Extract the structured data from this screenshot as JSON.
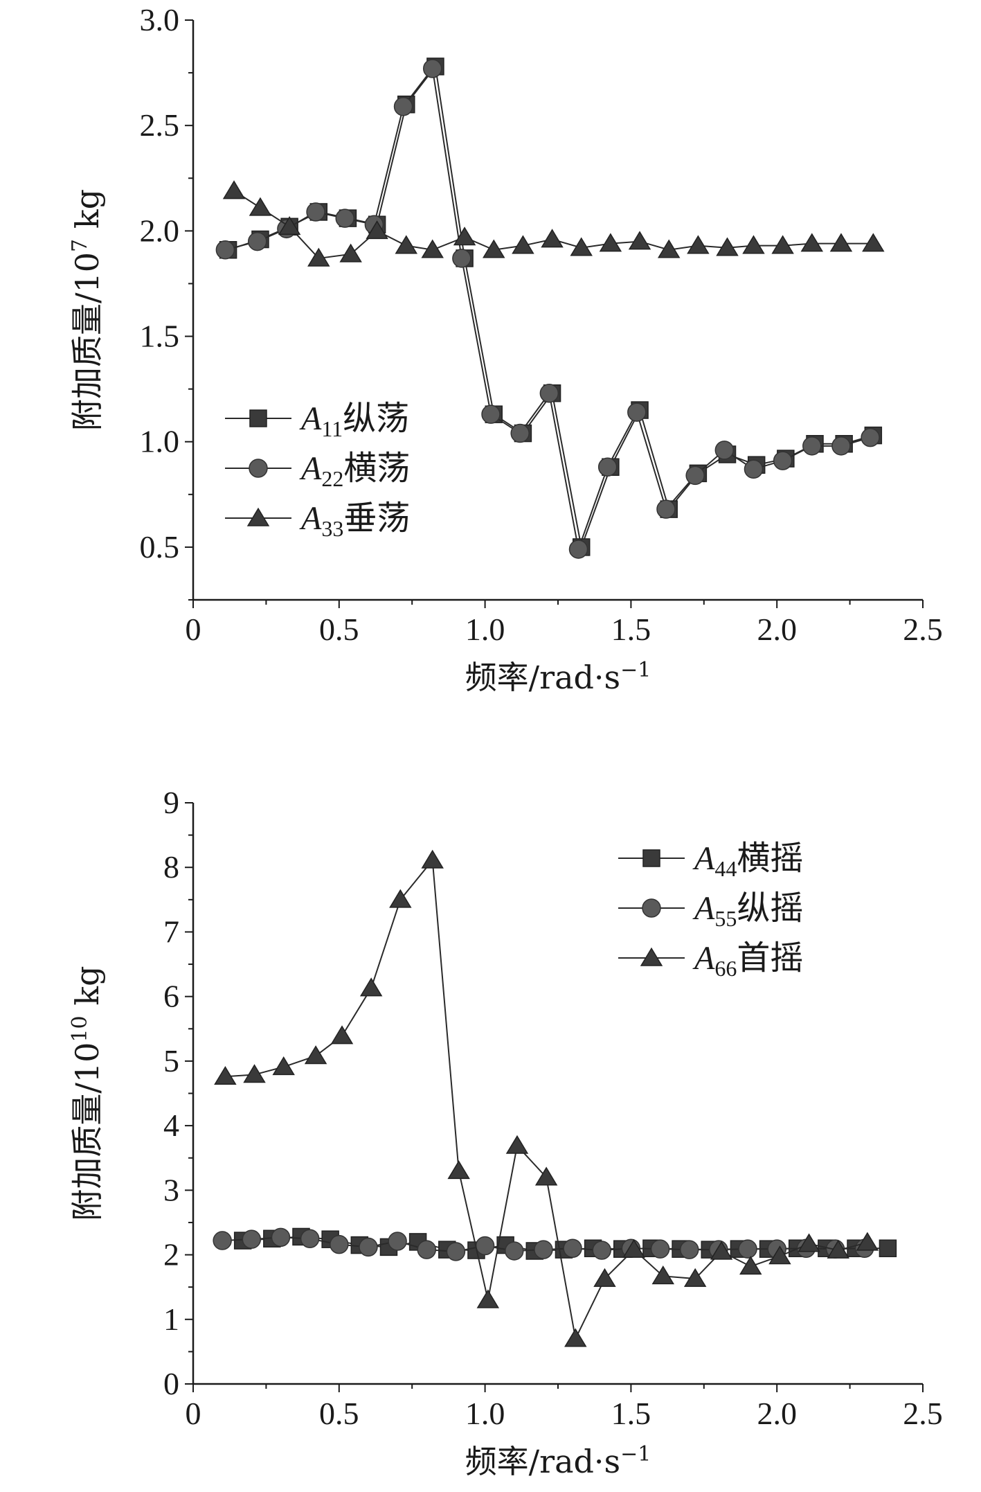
{
  "chart_data": [
    {
      "type": "line",
      "title": "",
      "xlabel": "频率/rad·s",
      "xlabel_sup": "−1",
      "ylabel": "附加质量/10",
      "ylabel_sup": "7",
      "ylabel_unit": " kg",
      "xlim": [
        0,
        2.5
      ],
      "ylim": [
        0.25,
        3.0
      ],
      "xticks": [
        "0",
        "0.5",
        "1.0",
        "1.5",
        "2.0",
        "2.5"
      ],
      "xtick_values": [
        0,
        0.5,
        1.0,
        1.5,
        2.0,
        2.5
      ],
      "yticks": [
        "0.5",
        "1.0",
        "1.5",
        "2.0",
        "2.5",
        "3.0"
      ],
      "ytick_values": [
        0.5,
        1.0,
        1.5,
        2.0,
        2.5,
        3.0
      ],
      "legend_position": "middle-left",
      "series": [
        {
          "name_sym": "A",
          "name_sub": "11",
          "name_text": "纵荡",
          "marker": "square",
          "x": [
            0.12,
            0.23,
            0.33,
            0.43,
            0.53,
            0.63,
            0.73,
            0.83,
            0.93,
            1.03,
            1.13,
            1.23,
            1.33,
            1.43,
            1.53,
            1.63,
            1.73,
            1.83,
            1.93,
            2.03,
            2.13,
            2.23,
            2.33
          ],
          "y": [
            1.91,
            1.96,
            2.02,
            2.09,
            2.06,
            2.03,
            2.6,
            2.78,
            1.87,
            1.13,
            1.04,
            1.23,
            0.5,
            0.88,
            1.15,
            0.68,
            0.85,
            0.94,
            0.89,
            0.92,
            0.99,
            0.99,
            1.03
          ]
        },
        {
          "name_sym": "A",
          "name_sub": "22",
          "name_text": "横荡",
          "marker": "circle",
          "x": [
            0.11,
            0.22,
            0.32,
            0.42,
            0.52,
            0.62,
            0.72,
            0.82,
            0.92,
            1.02,
            1.12,
            1.22,
            1.32,
            1.42,
            1.52,
            1.62,
            1.72,
            1.82,
            1.92,
            2.02,
            2.12,
            2.22,
            2.32
          ],
          "y": [
            1.91,
            1.95,
            2.01,
            2.09,
            2.06,
            2.03,
            2.59,
            2.77,
            1.87,
            1.13,
            1.04,
            1.23,
            0.49,
            0.88,
            1.14,
            0.68,
            0.84,
            0.96,
            0.87,
            0.91,
            0.98,
            0.98,
            1.02
          ]
        },
        {
          "name_sym": "A",
          "name_sub": "33",
          "name_text": "垂荡",
          "marker": "triangle",
          "x": [
            0.14,
            0.23,
            0.33,
            0.43,
            0.54,
            0.63,
            0.73,
            0.82,
            0.93,
            1.03,
            1.13,
            1.23,
            1.33,
            1.43,
            1.53,
            1.63,
            1.73,
            1.83,
            1.92,
            2.02,
            2.12,
            2.22,
            2.33
          ],
          "y": [
            2.19,
            2.11,
            2.02,
            1.87,
            1.89,
            2.0,
            1.93,
            1.91,
            1.97,
            1.91,
            1.93,
            1.96,
            1.92,
            1.94,
            1.95,
            1.91,
            1.93,
            1.92,
            1.93,
            1.93,
            1.94,
            1.94,
            1.94
          ]
        }
      ]
    },
    {
      "type": "line",
      "title": "",
      "xlabel": "频率/rad·s",
      "xlabel_sup": "−1",
      "ylabel": "附加质量/10",
      "ylabel_sup": "10",
      "ylabel_unit": " kg",
      "xlim": [
        0,
        2.5
      ],
      "ylim": [
        0,
        9
      ],
      "xticks": [
        "0",
        "0.5",
        "1.0",
        "1.5",
        "2.0",
        "2.5"
      ],
      "xtick_values": [
        0,
        0.5,
        1.0,
        1.5,
        2.0,
        2.5
      ],
      "yticks": [
        "0",
        "1",
        "2",
        "3",
        "4",
        "5",
        "6",
        "7",
        "8",
        "9"
      ],
      "ytick_values": [
        0,
        1,
        2,
        3,
        4,
        5,
        6,
        7,
        8,
        9
      ],
      "legend_position": "top-right",
      "series": [
        {
          "name_sym": "A",
          "name_sub": "44",
          "name_text": "横摇",
          "marker": "square",
          "x": [
            0.17,
            0.27,
            0.37,
            0.47,
            0.57,
            0.67,
            0.77,
            0.87,
            0.97,
            1.07,
            1.17,
            1.27,
            1.37,
            1.47,
            1.57,
            1.67,
            1.77,
            1.87,
            1.97,
            2.07,
            2.17,
            2.27,
            2.38
          ],
          "y": [
            2.22,
            2.25,
            2.28,
            2.24,
            2.15,
            2.12,
            2.2,
            2.08,
            2.07,
            2.15,
            2.06,
            2.08,
            2.1,
            2.09,
            2.1,
            2.09,
            2.08,
            2.09,
            2.09,
            2.1,
            2.1,
            2.1,
            2.1
          ]
        },
        {
          "name_sym": "A",
          "name_sub": "55",
          "name_text": "纵摇",
          "marker": "circle",
          "x": [
            0.1,
            0.2,
            0.3,
            0.4,
            0.5,
            0.6,
            0.7,
            0.8,
            0.9,
            1.0,
            1.1,
            1.2,
            1.3,
            1.4,
            1.5,
            1.6,
            1.7,
            1.8,
            1.9,
            2.0,
            2.1,
            2.2,
            2.3
          ],
          "y": [
            2.22,
            2.24,
            2.27,
            2.25,
            2.16,
            2.12,
            2.21,
            2.08,
            2.05,
            2.14,
            2.06,
            2.08,
            2.1,
            2.07,
            2.1,
            2.09,
            2.08,
            2.08,
            2.09,
            2.09,
            2.1,
            2.09,
            2.1
          ]
        },
        {
          "name_sym": "A",
          "name_sub": "66",
          "name_text": "首摇",
          "marker": "triangle",
          "x": [
            0.11,
            0.21,
            0.31,
            0.42,
            0.51,
            0.61,
            0.71,
            0.82,
            0.91,
            1.01,
            1.11,
            1.21,
            1.31,
            1.41,
            1.51,
            1.61,
            1.72,
            1.81,
            1.91,
            2.01,
            2.11,
            2.21,
            2.31
          ],
          "y": [
            4.76,
            4.79,
            4.91,
            5.08,
            5.39,
            6.13,
            7.5,
            8.11,
            3.3,
            1.3,
            3.69,
            3.2,
            0.7,
            1.63,
            2.08,
            1.67,
            1.63,
            2.05,
            1.82,
            1.98,
            2.17,
            2.07,
            2.19
          ]
        }
      ]
    }
  ]
}
